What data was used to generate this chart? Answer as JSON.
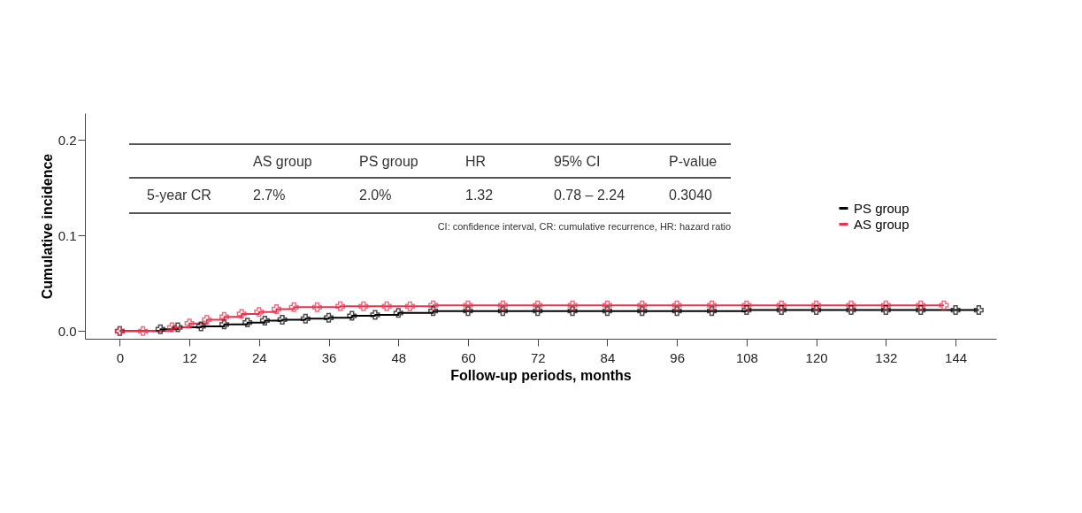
{
  "chart_data": {
    "type": "step",
    "xlabel": "Follow-up periods, months",
    "ylabel": "Cumulative incidence",
    "xlim": [
      -6,
      151
    ],
    "xticks": [
      0,
      12,
      24,
      36,
      48,
      60,
      72,
      84,
      96,
      108,
      120,
      132,
      144
    ],
    "ylim": [
      -0.008,
      0.228
    ],
    "yticks": [
      {
        "value": 0,
        "label": "0.0"
      },
      {
        "value": 0.1,
        "label": "0.1"
      },
      {
        "value": 0.2,
        "label": "0.2"
      }
    ],
    "grid": false,
    "legend": "right",
    "marker": "cross",
    "line_style": "solid",
    "series": [
      {
        "name": "PS group",
        "color": "#000000",
        "x": [
          0,
          7,
          10,
          14,
          18,
          22,
          25,
          28,
          32,
          36,
          40,
          44,
          48,
          54,
          60,
          66,
          72,
          78,
          84,
          90,
          96,
          102,
          108,
          114,
          120,
          126,
          132,
          138,
          144,
          148
        ],
        "values": [
          0,
          0.002,
          0.004,
          0.005,
          0.007,
          0.009,
          0.011,
          0.012,
          0.013,
          0.014,
          0.016,
          0.017,
          0.019,
          0.021,
          0.021,
          0.021,
          0.021,
          0.021,
          0.021,
          0.021,
          0.021,
          0.021,
          0.022,
          0.022,
          0.022,
          0.022,
          0.022,
          0.022,
          0.022,
          0.022
        ]
      },
      {
        "name": "AS group",
        "color": "#e8334f",
        "x": [
          0,
          4,
          9,
          12,
          15,
          18,
          21,
          24,
          27,
          30,
          34,
          38,
          42,
          46,
          50,
          54,
          60,
          66,
          72,
          78,
          84,
          90,
          96,
          102,
          108,
          114,
          120,
          126,
          132,
          138,
          142
        ],
        "values": [
          0,
          0,
          0.004,
          0.008,
          0.012,
          0.015,
          0.018,
          0.02,
          0.023,
          0.025,
          0.025,
          0.026,
          0.026,
          0.026,
          0.026,
          0.027,
          0.027,
          0.027,
          0.027,
          0.027,
          0.027,
          0.027,
          0.027,
          0.027,
          0.027,
          0.027,
          0.027,
          0.027,
          0.027,
          0.027,
          0.027
        ]
      }
    ],
    "annotations": [
      "AS group",
      "PS group",
      "HR",
      "95% CI",
      "P-value",
      "5-year CR",
      "2.7%",
      "2.0%",
      "1.32",
      "0.78 – 2.24",
      "0.3040",
      "CI: confidence interval, CR: cumulative recurrence, HR: hazard ratio"
    ]
  }
}
